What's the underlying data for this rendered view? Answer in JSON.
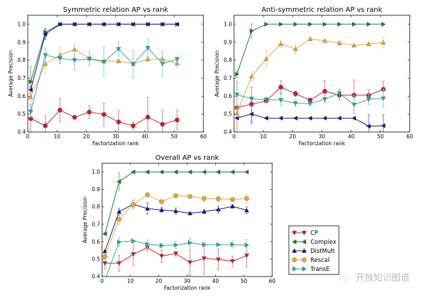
{
  "legend": {
    "entries": [
      {
        "name": "CP",
        "color": "#c8202b",
        "marker": "circle-or-triangle-down"
      },
      {
        "name": "Complex",
        "color": "#1f7a2a",
        "marker": "triangle"
      },
      {
        "name": "DistMult",
        "color": "#12128c",
        "marker": "triangle"
      },
      {
        "name": "Rescal",
        "color": "#e8a632",
        "marker": "circle"
      },
      {
        "name": "TransE",
        "color": "#2aa8a8",
        "marker": "triangle"
      }
    ]
  },
  "watermark": "开放知识图谱",
  "chart_data": [
    {
      "type": "line",
      "title": "Symmetric relation AP vs rank",
      "xlabel": "Factorization rank",
      "ylabel": "Average Precision",
      "xlim": [
        0,
        60
      ],
      "ylim": [
        0.4,
        1.05
      ],
      "xticks": [
        0,
        10,
        20,
        30,
        40,
        50,
        60
      ],
      "yticks": [
        0.4,
        0.5,
        0.6,
        0.7,
        0.8,
        0.9,
        1.0
      ],
      "x": [
        1,
        6,
        11,
        16,
        21,
        26,
        31,
        36,
        41,
        46,
        51
      ],
      "series": [
        {
          "name": "CP",
          "marker": "circle",
          "values": [
            0.475,
            0.435,
            0.522,
            0.482,
            0.511,
            0.498,
            0.456,
            0.435,
            0.483,
            0.443,
            0.467
          ],
          "err": [
            0.08,
            0.055,
            0.065,
            0.005,
            0.035,
            0.063,
            0.065,
            0.022,
            0.11,
            0.08,
            0.055
          ]
        },
        {
          "name": "Complex",
          "marker": "tri-right",
          "values": [
            0.68,
            0.957,
            1.0,
            1.0,
            1.0,
            1.0,
            1.0,
            1.0,
            1.0,
            1.0,
            1.0
          ],
          "err": [
            0.085,
            0.02,
            0,
            0,
            0,
            0,
            0,
            0,
            0,
            0,
            0
          ]
        },
        {
          "name": "DistMult",
          "marker": "tri-left",
          "values": [
            0.635,
            0.945,
            1.0,
            1.0,
            1.0,
            1.0,
            1.0,
            1.0,
            1.0,
            1.0,
            1.0
          ],
          "err": [
            0.02,
            0.03,
            0,
            0,
            0,
            0,
            0,
            0,
            0,
            0,
            0
          ]
        },
        {
          "name": "Rescal",
          "marker": "tri-up",
          "values": [
            0.595,
            0.78,
            0.828,
            0.86,
            0.81,
            0.795,
            0.795,
            0.78,
            0.805,
            0.807,
            0.782
          ],
          "err": [
            0.02,
            0.05,
            0.045,
            0.028,
            0.01,
            0.01,
            0.01,
            0.01,
            0.015,
            0.01,
            0.02
          ]
        },
        {
          "name": "TransE",
          "marker": "tri-down",
          "values": [
            0.513,
            0.828,
            0.81,
            0.8,
            0.808,
            0.79,
            0.862,
            0.778,
            0.868,
            0.78,
            0.806
          ],
          "err": [
            0.03,
            0.04,
            0.03,
            0.055,
            0.04,
            0.08,
            0.04,
            0.075,
            0.05,
            0.07,
            0.01
          ]
        }
      ]
    },
    {
      "type": "line",
      "title": "Anti-symmetric relation AP vs rank",
      "xlabel": "Factorization rank",
      "ylabel": "Average Precision",
      "xlim": [
        0,
        60
      ],
      "ylim": [
        0.4,
        1.05
      ],
      "xticks": [
        0,
        10,
        20,
        30,
        40,
        50,
        60
      ],
      "yticks": [
        0.4,
        0.5,
        0.6,
        0.7,
        0.8,
        0.9,
        1.0
      ],
      "x": [
        1,
        6,
        11,
        16,
        21,
        26,
        31,
        36,
        41,
        46,
        51
      ],
      "series": [
        {
          "name": "CP",
          "marker": "circle",
          "values": [
            0.535,
            0.555,
            0.573,
            0.65,
            0.613,
            0.578,
            0.627,
            0.605,
            0.605,
            0.605,
            0.638
          ],
          "err": [
            0.14,
            0.095,
            0.01,
            0.035,
            0.015,
            0.01,
            0.058,
            0.03,
            0.085,
            0.03,
            0.045
          ]
        },
        {
          "name": "Complex",
          "marker": "tri-right",
          "values": [
            0.722,
            0.963,
            1.0,
            1.0,
            1.0,
            1.0,
            1.0,
            1.0,
            1.0,
            1.0,
            1.0
          ],
          "err": [
            0.02,
            0.04,
            0,
            0,
            0,
            0,
            0,
            0,
            0,
            0,
            0
          ]
        },
        {
          "name": "DistMult",
          "marker": "tri-left",
          "values": [
            0.478,
            0.5,
            0.477,
            0.477,
            0.477,
            0.477,
            0.477,
            0.477,
            0.477,
            0.432,
            0.435
          ],
          "err": [
            0.005,
            0.05,
            0,
            0,
            0,
            0,
            0,
            0,
            0,
            0.065,
            0.06
          ]
        },
        {
          "name": "Rescal",
          "marker": "tri-up",
          "values": [
            0.505,
            0.71,
            0.807,
            0.891,
            0.862,
            0.918,
            0.908,
            0.895,
            0.882,
            0.89,
            0.898
          ],
          "err": [
            0.02,
            0.025,
            0.05,
            0.02,
            0.025,
            0.01,
            0.005,
            0.01,
            0.005,
            0.01,
            0.03
          ]
        },
        {
          "name": "TransE",
          "marker": "tri-down",
          "values": [
            0.608,
            0.585,
            0.58,
            0.578,
            0.56,
            0.558,
            0.583,
            0.615,
            0.552,
            0.583,
            0.587
          ],
          "err": [
            0.075,
            0.01,
            0.015,
            0.035,
            0.02,
            0.01,
            0.02,
            0.025,
            0.05,
            0.03,
            0.05
          ]
        }
      ]
    },
    {
      "type": "line",
      "title": "Overall AP vs rank",
      "xlabel": "Factorization rank",
      "ylabel": "Average Precision",
      "xlim": [
        0,
        60
      ],
      "ylim": [
        0.4,
        1.05
      ],
      "xticks": [
        0,
        10,
        20,
        30,
        40,
        50,
        60
      ],
      "yticks": [
        0.4,
        0.5,
        0.6,
        0.7,
        0.8,
        0.9,
        1.0
      ],
      "x": [
        1,
        6,
        11,
        16,
        21,
        26,
        31,
        36,
        41,
        46,
        51
      ],
      "series": [
        {
          "name": "CP",
          "marker": "tri-down",
          "values": [
            0.476,
            0.476,
            0.528,
            0.566,
            0.518,
            0.531,
            0.481,
            0.504,
            0.498,
            0.488,
            0.52
          ],
          "err": [
            0.035,
            0.045,
            0.065,
            0.02,
            0.035,
            0.015,
            0.075,
            0.09,
            0.06,
            0.03,
            0.065
          ]
        },
        {
          "name": "Complex",
          "marker": "tri-left",
          "values": [
            0.645,
            0.945,
            1.0,
            1.0,
            1.0,
            1.0,
            1.0,
            1.0,
            1.0,
            1.0,
            1.0
          ],
          "err": [
            0.005,
            0.05,
            0,
            0,
            0,
            0,
            0,
            0,
            0,
            0,
            0
          ]
        },
        {
          "name": "DistMult",
          "marker": "tri-up",
          "values": [
            0.545,
            0.772,
            0.815,
            0.79,
            0.782,
            0.776,
            0.763,
            0.773,
            0.785,
            0.803,
            0.78
          ],
          "err": [
            0.005,
            0.02,
            0.02,
            0.032,
            0.015,
            0.018,
            0.005,
            0.012,
            0.02,
            0.01,
            0.02
          ]
        },
        {
          "name": "Rescal",
          "marker": "circle",
          "values": [
            0.515,
            0.728,
            0.814,
            0.869,
            0.83,
            0.864,
            0.86,
            0.848,
            0.846,
            0.842,
            0.848
          ],
          "err": [
            0.005,
            0.03,
            0.028,
            0.005,
            0.01,
            0.01,
            0.005,
            0.018,
            0.015,
            0.01,
            0.025
          ]
        },
        {
          "name": "TransE",
          "marker": "tri-right",
          "values": [
            0.38,
            0.598,
            0.605,
            0.586,
            0.578,
            0.581,
            0.594,
            0.582,
            0.583,
            0.584,
            0.58
          ],
          "err": [
            0.0,
            0.025,
            0.005,
            0.025,
            0.01,
            0.02,
            0.025,
            0.01,
            0.005,
            0.02,
            0.033
          ]
        }
      ]
    }
  ]
}
